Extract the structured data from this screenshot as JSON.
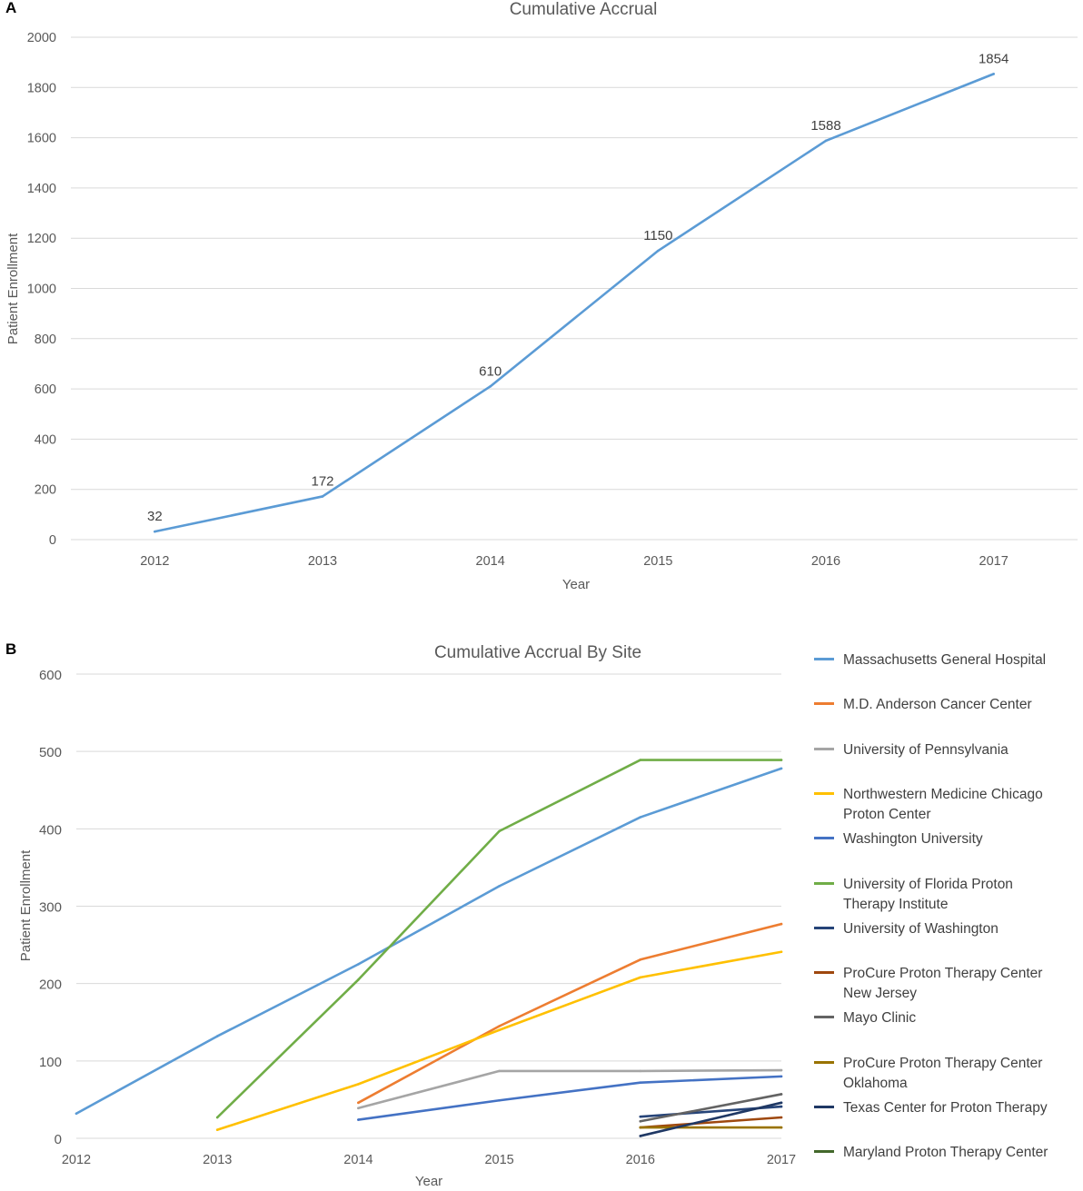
{
  "chart_data": [
    {
      "panel": "A",
      "type": "line",
      "title": "Cumulative Accrual",
      "xlabel": "Year",
      "ylabel": "Patient Enrollment",
      "categories": [
        "2012",
        "2013",
        "2014",
        "2015",
        "2016",
        "2017"
      ],
      "series": [
        {
          "name": "Cumulative Accrual",
          "color": "#5b9bd5",
          "values": [
            32,
            172,
            610,
            1150,
            1588,
            1854
          ]
        }
      ],
      "data_labels": [
        "32",
        "172",
        "610",
        "1150",
        "1588",
        "1854"
      ],
      "y_ticks": [
        "0",
        "200",
        "400",
        "600",
        "800",
        "1000",
        "1200",
        "1400",
        "1600",
        "1800",
        "2000"
      ],
      "ylim": [
        0,
        2000
      ],
      "grid": true,
      "legend": "none"
    },
    {
      "panel": "B",
      "type": "line",
      "title": "Cumulative Accrual By Site",
      "xlabel": "Year",
      "ylabel": "Patient Enrollment",
      "categories": [
        "2012",
        "2013",
        "2014",
        "2015",
        "2016",
        "2017"
      ],
      "y_ticks": [
        "0",
        "100",
        "200",
        "300",
        "400",
        "500",
        "600"
      ],
      "ylim": [
        0,
        600
      ],
      "grid": true,
      "legend": "right",
      "series": [
        {
          "name": "Massachusetts General Hospital",
          "color": "#5b9bd5",
          "x": [
            2012,
            2013,
            2014,
            2015,
            2016,
            2017
          ],
          "values": [
            32,
            132,
            225,
            326,
            415,
            478
          ]
        },
        {
          "name": "M.D. Anderson Cancer Center",
          "color": "#ed7d31",
          "x": [
            2014,
            2015,
            2016,
            2017
          ],
          "values": [
            46,
            145,
            231,
            277
          ]
        },
        {
          "name": "University of Pennsylvania",
          "color": "#a5a5a5",
          "x": [
            2014,
            2015,
            2016,
            2017
          ],
          "values": [
            39,
            87,
            87,
            88
          ]
        },
        {
          "name": "Northwestern Medicine Chicago Proton Center",
          "color": "#ffc000",
          "x": [
            2013,
            2014,
            2015,
            2016,
            2017
          ],
          "values": [
            11,
            70,
            140,
            208,
            241
          ]
        },
        {
          "name": "Washington University",
          "color": "#4472c4",
          "x": [
            2014,
            2015,
            2016,
            2017
          ],
          "values": [
            24,
            49,
            72,
            80
          ]
        },
        {
          "name": "University of Florida Proton Therapy Institute",
          "color": "#70ad47",
          "x": [
            2013,
            2014,
            2015,
            2016,
            2017
          ],
          "values": [
            27,
            205,
            397,
            489,
            489
          ]
        },
        {
          "name": "University of Washington",
          "color": "#264478",
          "x": [
            2016,
            2017
          ],
          "values": [
            28,
            41
          ]
        },
        {
          "name": "ProCure Proton Therapy Center New Jersey",
          "color": "#9e480e",
          "x": [
            2016,
            2017
          ],
          "values": [
            14,
            27
          ]
        },
        {
          "name": "Mayo Clinic",
          "color": "#636363",
          "x": [
            2016,
            2017
          ],
          "values": [
            22,
            57
          ]
        },
        {
          "name": "ProCure Proton Therapy Center Oklahoma",
          "color": "#997300",
          "x": [
            2016,
            2017
          ],
          "values": [
            14,
            14
          ]
        },
        {
          "name": "Texas Center for Proton Therapy",
          "color": "#1f3864",
          "x": [
            2016,
            2017
          ],
          "values": [
            3,
            46
          ]
        },
        {
          "name": "Maryland Proton Therapy Center",
          "color": "#43682b",
          "x": [],
          "values": []
        }
      ]
    }
  ],
  "legend_lines": [
    [
      "Massachusetts General Hospital"
    ],
    [
      "M.D. Anderson Cancer Center"
    ],
    [
      "University of Pennsylvania"
    ],
    [
      "Northwestern Medicine Chicago",
      "Proton Center"
    ],
    [
      "Washington University"
    ],
    [
      "University of Florida Proton",
      "Therapy Institute"
    ],
    [
      "University of Washington"
    ],
    [
      "ProCure Proton Therapy Center",
      "New Jersey"
    ],
    [
      "Mayo Clinic"
    ],
    [
      "ProCure Proton Therapy Center",
      "Oklahoma"
    ],
    [
      "Texas Center for Proton Therapy"
    ],
    [
      "Maryland Proton Therapy Center"
    ]
  ]
}
